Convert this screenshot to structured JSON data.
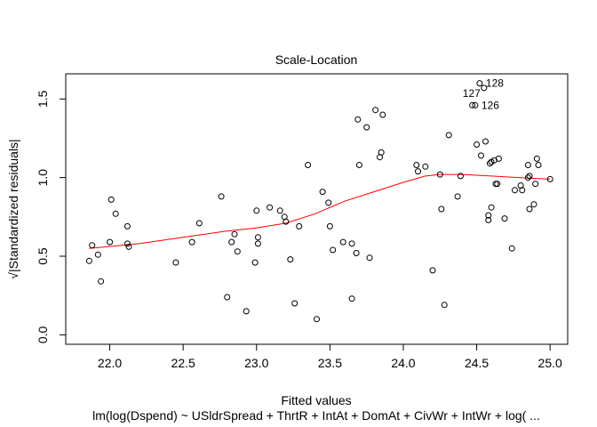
{
  "chart_data": {
    "type": "scatter",
    "title": "Scale-Location",
    "xlabel": "Fitted values",
    "subtitle": "lm(log(Dspend) ~ USldrSpread + ThrtR + IntAt + DomAt + CivWr + IntWr + log( ...",
    "ylabel": "√|Standardized residuals|",
    "xlim": [
      21.7,
      25.12
    ],
    "ylim": [
      -0.06,
      1.66
    ],
    "x_ticks": [
      "22.0",
      "22.5",
      "23.0",
      "23.5",
      "24.0",
      "24.5",
      "25.0"
    ],
    "y_ticks": [
      "0.0",
      "0.5",
      "1.0",
      "1.5"
    ],
    "grid": false,
    "point_color": "#000000",
    "smooth_color": "#ff0000",
    "points": [
      {
        "x": 21.86,
        "y": 0.47
      },
      {
        "x": 21.88,
        "y": 0.57
      },
      {
        "x": 21.92,
        "y": 0.51
      },
      {
        "x": 21.94,
        "y": 0.34
      },
      {
        "x": 22.0,
        "y": 0.59
      },
      {
        "x": 22.01,
        "y": 0.86
      },
      {
        "x": 22.04,
        "y": 0.77
      },
      {
        "x": 22.12,
        "y": 0.69
      },
      {
        "x": 22.12,
        "y": 0.58
      },
      {
        "x": 22.13,
        "y": 0.56
      },
      {
        "x": 22.45,
        "y": 0.46
      },
      {
        "x": 22.56,
        "y": 0.59
      },
      {
        "x": 22.61,
        "y": 0.71
      },
      {
        "x": 22.76,
        "y": 0.88
      },
      {
        "x": 22.8,
        "y": 0.24
      },
      {
        "x": 22.83,
        "y": 0.59
      },
      {
        "x": 22.85,
        "y": 0.64
      },
      {
        "x": 22.87,
        "y": 0.53
      },
      {
        "x": 22.93,
        "y": 0.15
      },
      {
        "x": 22.99,
        "y": 0.46
      },
      {
        "x": 23.0,
        "y": 0.79
      },
      {
        "x": 23.01,
        "y": 0.62
      },
      {
        "x": 23.01,
        "y": 0.58
      },
      {
        "x": 23.09,
        "y": 0.81
      },
      {
        "x": 23.16,
        "y": 0.79
      },
      {
        "x": 23.19,
        "y": 0.75
      },
      {
        "x": 23.2,
        "y": 0.72
      },
      {
        "x": 23.23,
        "y": 0.48
      },
      {
        "x": 23.26,
        "y": 0.2
      },
      {
        "x": 23.29,
        "y": 0.69
      },
      {
        "x": 23.35,
        "y": 1.08
      },
      {
        "x": 23.41,
        "y": 0.1
      },
      {
        "x": 23.45,
        "y": 0.91
      },
      {
        "x": 23.49,
        "y": 0.84
      },
      {
        "x": 23.5,
        "y": 0.69
      },
      {
        "x": 23.52,
        "y": 0.54
      },
      {
        "x": 23.59,
        "y": 0.59
      },
      {
        "x": 23.65,
        "y": 0.58
      },
      {
        "x": 23.65,
        "y": 0.23
      },
      {
        "x": 23.68,
        "y": 0.52
      },
      {
        "x": 23.69,
        "y": 1.37
      },
      {
        "x": 23.7,
        "y": 1.08
      },
      {
        "x": 23.75,
        "y": 1.32
      },
      {
        "x": 23.77,
        "y": 0.49
      },
      {
        "x": 23.81,
        "y": 1.43
      },
      {
        "x": 23.84,
        "y": 1.13
      },
      {
        "x": 23.85,
        "y": 1.16
      },
      {
        "x": 23.86,
        "y": 1.4
      },
      {
        "x": 24.09,
        "y": 1.08
      },
      {
        "x": 24.1,
        "y": 1.04
      },
      {
        "x": 24.15,
        "y": 1.07
      },
      {
        "x": 24.2,
        "y": 0.41
      },
      {
        "x": 24.25,
        "y": 1.02
      },
      {
        "x": 24.26,
        "y": 0.8
      },
      {
        "x": 24.28,
        "y": 0.19
      },
      {
        "x": 24.31,
        "y": 1.27
      },
      {
        "x": 24.37,
        "y": 0.88
      },
      {
        "x": 24.39,
        "y": 1.01
      },
      {
        "x": 24.47,
        "y": 1.46
      },
      {
        "x": 24.49,
        "y": 1.46
      },
      {
        "x": 24.5,
        "y": 1.21
      },
      {
        "x": 24.52,
        "y": 1.6
      },
      {
        "x": 24.53,
        "y": 1.14
      },
      {
        "x": 24.55,
        "y": 1.57
      },
      {
        "x": 24.56,
        "y": 1.23
      },
      {
        "x": 24.58,
        "y": 0.73
      },
      {
        "x": 24.58,
        "y": 0.76
      },
      {
        "x": 24.59,
        "y": 1.09
      },
      {
        "x": 24.6,
        "y": 1.1
      },
      {
        "x": 24.6,
        "y": 0.81
      },
      {
        "x": 24.62,
        "y": 1.11
      },
      {
        "x": 24.63,
        "y": 0.96
      },
      {
        "x": 24.64,
        "y": 0.96
      },
      {
        "x": 24.65,
        "y": 1.12
      },
      {
        "x": 24.69,
        "y": 0.74
      },
      {
        "x": 24.74,
        "y": 0.55
      },
      {
        "x": 24.76,
        "y": 0.92
      },
      {
        "x": 24.8,
        "y": 0.95
      },
      {
        "x": 24.81,
        "y": 0.92
      },
      {
        "x": 24.85,
        "y": 1.08
      },
      {
        "x": 24.85,
        "y": 1.0
      },
      {
        "x": 24.86,
        "y": 1.01
      },
      {
        "x": 24.86,
        "y": 0.8
      },
      {
        "x": 24.89,
        "y": 0.83
      },
      {
        "x": 24.9,
        "y": 0.96
      },
      {
        "x": 24.91,
        "y": 1.12
      },
      {
        "x": 24.92,
        "y": 1.08
      },
      {
        "x": 25.0,
        "y": 0.99
      }
    ],
    "labeled_points": [
      {
        "label": "128",
        "x": 24.52,
        "y": 1.6
      },
      {
        "label": "127",
        "x": 24.55,
        "y": 1.57
      },
      {
        "label": "126",
        "x": 24.49,
        "y": 1.46
      }
    ],
    "smooth_line": [
      {
        "x": 21.86,
        "y": 0.55
      },
      {
        "x": 22.2,
        "y": 0.58
      },
      {
        "x": 22.5,
        "y": 0.62
      },
      {
        "x": 22.8,
        "y": 0.66
      },
      {
        "x": 23.0,
        "y": 0.68
      },
      {
        "x": 23.2,
        "y": 0.71
      },
      {
        "x": 23.4,
        "y": 0.77
      },
      {
        "x": 23.6,
        "y": 0.85
      },
      {
        "x": 23.8,
        "y": 0.91
      },
      {
        "x": 24.0,
        "y": 0.97
      },
      {
        "x": 24.15,
        "y": 1.01
      },
      {
        "x": 24.25,
        "y": 1.02
      },
      {
        "x": 24.4,
        "y": 1.02
      },
      {
        "x": 24.6,
        "y": 1.01
      },
      {
        "x": 24.8,
        "y": 1.0
      },
      {
        "x": 25.0,
        "y": 0.99
      }
    ]
  }
}
